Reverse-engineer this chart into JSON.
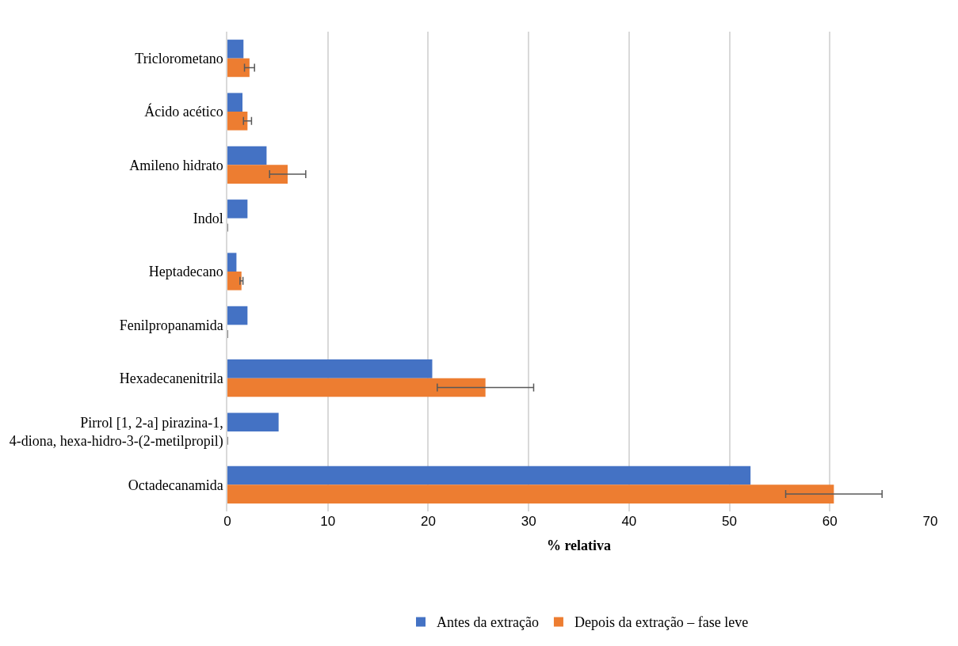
{
  "chart_data": {
    "type": "bar",
    "orientation": "horizontal",
    "xlabel": "% relativa",
    "categories": [
      "Triclorometano",
      "Ácido acético",
      "Amileno hidrato",
      "Indol",
      "Heptadecano",
      "Fenilpropanamida",
      "Hexadecanenitrila",
      "Pirrol [1, 2-a] pirazina-1, 4-diona, hexa-hidro-3-(2-metilpropil)",
      "Octadecanamida"
    ],
    "series": [
      {
        "name": "Antes da extração",
        "color": "#4472c4",
        "values": [
          1.6,
          1.5,
          3.9,
          2.0,
          0.9,
          2.0,
          20.4,
          5.1,
          52.1
        ]
      },
      {
        "name": "Depois da extração – fase leve",
        "color": "#ed7d31",
        "values": [
          2.2,
          2.0,
          6.0,
          0,
          1.4,
          0,
          25.7,
          0,
          60.4
        ],
        "errors": [
          0.5,
          0.4,
          1.8,
          null,
          0.15,
          null,
          4.8,
          null,
          4.8
        ]
      }
    ],
    "xlim": [
      0,
      70
    ],
    "xticks": [
      0,
      10,
      20,
      30,
      40,
      50,
      60,
      70
    ],
    "grid": "x",
    "legend": "bottom"
  }
}
